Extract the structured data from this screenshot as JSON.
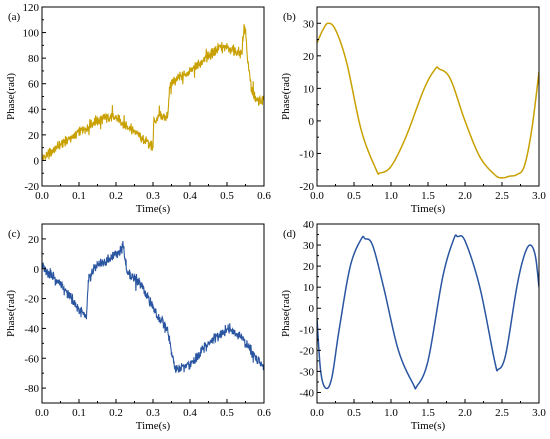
{
  "chart_data": [
    {
      "panel_label": "(a)",
      "type": "line",
      "xlabel": "Time(s)",
      "ylabel": "Phase(rad)",
      "xlim": [
        0,
        0.6
      ],
      "ylim": [
        -20,
        120
      ],
      "xticks": [
        0.0,
        0.1,
        0.2,
        0.3,
        0.4,
        0.5,
        0.6
      ],
      "yticks": [
        -20,
        0,
        20,
        40,
        60,
        80,
        100,
        120
      ],
      "xtick_labels": [
        "0.0",
        "0.1",
        "0.2",
        "0.3",
        "0.4",
        "0.5",
        "0.6"
      ],
      "ytick_labels": [
        "-20",
        "0",
        "20",
        "40",
        "60",
        "80",
        "100",
        "120"
      ],
      "color": "#C8A000",
      "noisy": true,
      "x": [
        0.0,
        0.03,
        0.06,
        0.1,
        0.14,
        0.18,
        0.2,
        0.24,
        0.28,
        0.3,
        0.302,
        0.32,
        0.34,
        0.345,
        0.36,
        0.38,
        0.4,
        0.44,
        0.48,
        0.5,
        0.53,
        0.54,
        0.545,
        0.55,
        0.555,
        0.565,
        0.57,
        0.58,
        0.6
      ],
      "y": [
        0,
        8,
        14,
        22,
        30,
        34,
        33,
        25,
        15,
        10,
        30,
        34,
        34,
        58,
        63,
        66,
        70,
        79,
        88,
        88,
        85,
        83,
        102,
        103,
        80,
        58,
        52,
        47,
        47
      ]
    },
    {
      "panel_label": "(b)",
      "type": "line",
      "xlabel": "Time(s)",
      "ylabel": "Phase(rad)",
      "xlim": [
        0,
        3.0
      ],
      "ylim": [
        -20,
        35
      ],
      "xticks": [
        0.0,
        0.5,
        1.0,
        1.5,
        2.0,
        2.5,
        3.0
      ],
      "yticks": [
        -20,
        -10,
        0,
        10,
        20,
        30
      ],
      "xtick_labels": [
        "0.0",
        "0.5",
        "1.0",
        "1.5",
        "2.0",
        "2.5",
        "3.0"
      ],
      "ytick_labels": [
        "-20",
        "-10",
        "0",
        "10",
        "20",
        "30"
      ],
      "color": "#C8A000",
      "noisy": false,
      "x": [
        0.0,
        0.08,
        0.15,
        0.25,
        0.4,
        0.6,
        0.8,
        0.85,
        1.0,
        1.2,
        1.45,
        1.6,
        1.65,
        1.8,
        2.0,
        2.2,
        2.4,
        2.5,
        2.6,
        2.7,
        2.8,
        2.9,
        3.0
      ],
      "y": [
        24,
        28,
        30,
        28,
        18,
        -3,
        -15,
        -16,
        -14,
        -5,
        10,
        16,
        16,
        13,
        0,
        -11,
        -16.5,
        -17.5,
        -17,
        -16.5,
        -14,
        -3,
        15
      ]
    },
    {
      "panel_label": "(c)",
      "type": "line",
      "xlabel": "Time(s)",
      "ylabel": "Phase(rad)",
      "xlim": [
        0,
        0.6
      ],
      "ylim": [
        -90,
        30
      ],
      "xticks": [
        0.0,
        0.1,
        0.2,
        0.3,
        0.4,
        0.5,
        0.6
      ],
      "yticks": [
        -80,
        -60,
        -40,
        -20,
        0,
        20
      ],
      "xtick_labels": [
        "0.0",
        "0.1",
        "0.2",
        "0.3",
        "0.4",
        "0.5",
        "0.6"
      ],
      "ytick_labels": [
        "-80",
        "-60",
        "-40",
        "-20",
        "0",
        "20"
      ],
      "color": "#2A55A0",
      "noisy": true,
      "x": [
        0.0,
        0.04,
        0.08,
        0.12,
        0.125,
        0.14,
        0.18,
        0.2,
        0.22,
        0.23,
        0.26,
        0.3,
        0.34,
        0.35,
        0.36,
        0.4,
        0.44,
        0.5,
        0.54,
        0.58,
        0.6
      ],
      "y": [
        2,
        -8,
        -20,
        -34,
        -10,
        1,
        6,
        10,
        15,
        -2,
        -8,
        -26,
        -42,
        -56,
        -68,
        -64,
        -52,
        -40,
        -46,
        -60,
        -66
      ]
    },
    {
      "panel_label": "(d)",
      "type": "line",
      "xlabel": "Time(s)",
      "ylabel": "Phase(rad)",
      "xlim": [
        0,
        3.0
      ],
      "ylim": [
        -45,
        40
      ],
      "xticks": [
        0.0,
        0.5,
        1.0,
        1.5,
        2.0,
        2.5,
        3.0
      ],
      "yticks": [
        -40,
        -30,
        -20,
        -10,
        0,
        10,
        20,
        30,
        40
      ],
      "xtick_labels": [
        "0.0",
        "0.5",
        "1.0",
        "1.5",
        "2.0",
        "2.5",
        "3.0"
      ],
      "ytick_labels": [
        "-40",
        "-30",
        "-20",
        "-10",
        "0",
        "10",
        "20",
        "30",
        "40"
      ],
      "color": "#2A55A0",
      "noisy": false,
      "x": [
        0.0,
        0.05,
        0.12,
        0.2,
        0.3,
        0.45,
        0.6,
        0.65,
        0.75,
        0.9,
        1.1,
        1.3,
        1.35,
        1.5,
        1.7,
        1.85,
        1.9,
        2.0,
        2.2,
        2.4,
        2.45,
        2.55,
        2.7,
        2.8,
        2.88,
        2.95,
        3.0
      ],
      "y": [
        -5,
        -30,
        -38,
        -33,
        -10,
        20,
        33,
        33,
        30,
        10,
        -20,
        -36,
        -37,
        -25,
        15,
        33,
        34,
        32,
        10,
        -25,
        -29,
        -22,
        10,
        25,
        30,
        25,
        10
      ]
    }
  ]
}
